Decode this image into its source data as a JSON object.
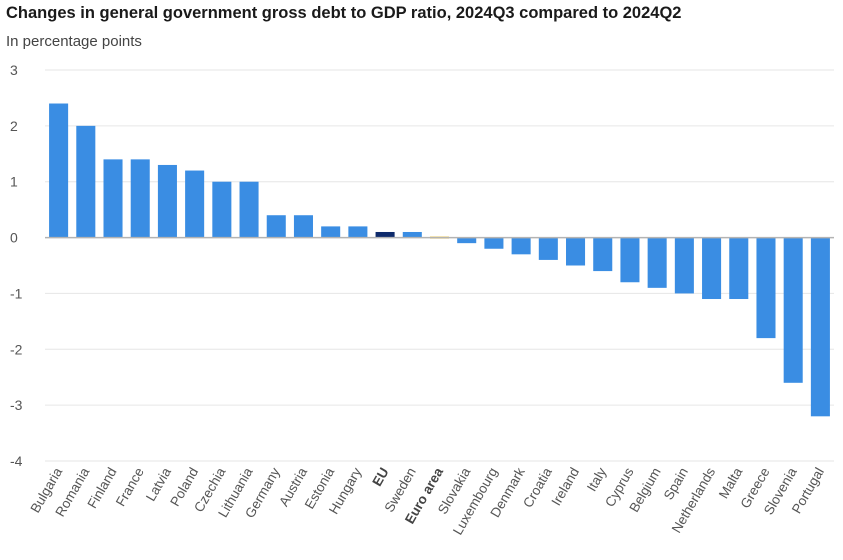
{
  "chart_data": {
    "type": "bar",
    "title": "Changes in general government gross debt to GDP ratio, 2024Q3 compared to 2024Q2",
    "subtitle": "In percentage points",
    "categories": [
      "Bulgaria",
      "Romania",
      "Finland",
      "France",
      "Latvia",
      "Poland",
      "Czechia",
      "Lithuania",
      "Germany",
      "Austria",
      "Estonia",
      "Hungary",
      "EU",
      "Sweden",
      "Euro area",
      "Slovakia",
      "Luxembourg",
      "Denmark",
      "Croatia",
      "Ireland",
      "Italy",
      "Cyprus",
      "Belgium",
      "Spain",
      "Netherlands",
      "Malta",
      "Greece",
      "Slovenia",
      "Portugal"
    ],
    "values": [
      2.4,
      2.0,
      1.4,
      1.4,
      1.3,
      1.2,
      1.0,
      1.0,
      0.4,
      0.4,
      0.2,
      0.2,
      0.1,
      0.1,
      0.0,
      -0.1,
      -0.2,
      -0.3,
      -0.4,
      -0.5,
      -0.6,
      -0.8,
      -0.9,
      -1.0,
      -1.1,
      -1.1,
      -1.8,
      -2.6,
      -3.2
    ],
    "bold_categories": [
      "EU",
      "Euro area"
    ],
    "ylim": [
      -4,
      3
    ],
    "yticks": [
      3,
      2,
      1,
      0,
      -1,
      -2,
      -3,
      -4
    ],
    "grid": true,
    "colors": {
      "default": "#3a8de3",
      "EU": "#0e2a6b",
      "Euro area": "#f2c230",
      "grid": "#e6e6e6",
      "zero_line": "#b3b3b3"
    }
  }
}
